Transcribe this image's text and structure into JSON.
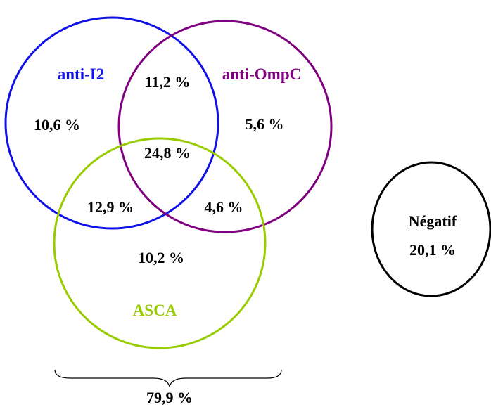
{
  "sets": {
    "anti_i2": {
      "label": "anti-I2",
      "color": "#1010e8"
    },
    "anti_ompc": {
      "label": "anti-OmpC",
      "color": "#800080"
    },
    "asca": {
      "label": "ASCA",
      "color": "#99cc00"
    },
    "negatif": {
      "label": "Négatif",
      "color": "#000000"
    }
  },
  "regions": {
    "i2_only": "10,6 %",
    "i2_ompc": "11,2 %",
    "ompc_only": "5,6 %",
    "all_three": "24,8 %",
    "i2_asca": "12,9 %",
    "ompc_asca": "4,6 %",
    "asca_only": "10,2 %"
  },
  "negatif_value": "20,1 %",
  "total_positive": "79,9 %"
}
